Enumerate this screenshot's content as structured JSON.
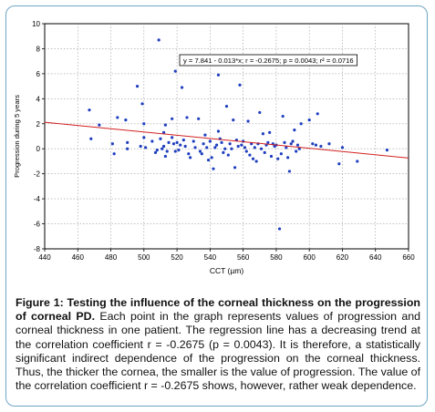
{
  "chart_data": {
    "type": "scatter",
    "title": "",
    "xlabel": "CCT (µm)",
    "ylabel": "Progression during 5 years",
    "xlim": [
      440,
      660
    ],
    "ylim": [
      -8,
      10
    ],
    "x_ticks": [
      440,
      460,
      480,
      500,
      520,
      540,
      560,
      580,
      600,
      620,
      640,
      660
    ],
    "y_ticks": [
      -8,
      -6,
      -4,
      -2,
      0,
      2,
      4,
      6,
      8,
      10
    ],
    "grid": true,
    "annotation": "y = 7.841 - 0.013*x;  r = -0.2675; p = 0.0043; r² = 0.0716",
    "regression": {
      "intercept": 7.841,
      "slope": -0.013,
      "color": "#d42020"
    },
    "point_color": "#1f3fbf",
    "points": [
      [
        467,
        3.1
      ],
      [
        468,
        0.8
      ],
      [
        473,
        1.9
      ],
      [
        481,
        0.4
      ],
      [
        482,
        -0.4
      ],
      [
        484,
        2.5
      ],
      [
        489,
        2.3
      ],
      [
        490,
        0.5
      ],
      [
        490,
        0.0
      ],
      [
        496,
        5.0
      ],
      [
        498,
        0.2
      ],
      [
        499,
        3.6
      ],
      [
        500,
        2.0
      ],
      [
        500,
        0.9
      ],
      [
        501,
        0.1
      ],
      [
        505,
        0.6
      ],
      [
        507,
        -0.3
      ],
      [
        508,
        -0.1
      ],
      [
        509,
        8.7
      ],
      [
        510,
        0.8
      ],
      [
        511,
        0.0
      ],
      [
        512,
        1.3
      ],
      [
        512,
        0.2
      ],
      [
        513,
        -0.6
      ],
      [
        513,
        1.9
      ],
      [
        514,
        -0.2
      ],
      [
        515,
        0.5
      ],
      [
        517,
        2.4
      ],
      [
        517,
        0.9
      ],
      [
        518,
        0.4
      ],
      [
        519,
        6.2
      ],
      [
        519,
        -0.2
      ],
      [
        520,
        0.5
      ],
      [
        521,
        -0.1
      ],
      [
        522,
        0.3
      ],
      [
        523,
        4.9
      ],
      [
        524,
        0.7
      ],
      [
        525,
        0.2
      ],
      [
        526,
        2.5
      ],
      [
        527,
        -0.4
      ],
      [
        528,
        -0.7
      ],
      [
        530,
        0.6
      ],
      [
        531,
        0.1
      ],
      [
        533,
        2.4
      ],
      [
        534,
        -0.2
      ],
      [
        535,
        -0.4
      ],
      [
        536,
        0.4
      ],
      [
        537,
        1.1
      ],
      [
        538,
        0.1
      ],
      [
        539,
        -0.9
      ],
      [
        540,
        0.6
      ],
      [
        541,
        -0.7
      ],
      [
        542,
        -1.6
      ],
      [
        543,
        0.1
      ],
      [
        544,
        0.3
      ],
      [
        545,
        5.9
      ],
      [
        545,
        1.4
      ],
      [
        546,
        0.8
      ],
      [
        547,
        0.5
      ],
      [
        548,
        -0.3
      ],
      [
        549,
        0.0
      ],
      [
        550,
        3.4
      ],
      [
        551,
        -0.5
      ],
      [
        552,
        0.4
      ],
      [
        553,
        0.0
      ],
      [
        554,
        2.3
      ],
      [
        555,
        -1.5
      ],
      [
        556,
        0.7
      ],
      [
        557,
        0.2
      ],
      [
        558,
        5.1
      ],
      [
        559,
        0.3
      ],
      [
        560,
        0.6
      ],
      [
        561,
        0.1
      ],
      [
        562,
        -0.2
      ],
      [
        563,
        2.2
      ],
      [
        564,
        -0.5
      ],
      [
        565,
        0.4
      ],
      [
        566,
        -0.8
      ],
      [
        567,
        0.1
      ],
      [
        568,
        -1.0
      ],
      [
        569,
        0.4
      ],
      [
        570,
        2.9
      ],
      [
        571,
        0.0
      ],
      [
        572,
        1.2
      ],
      [
        573,
        -0.3
      ],
      [
        574,
        0.3
      ],
      [
        575,
        0.5
      ],
      [
        576,
        1.3
      ],
      [
        577,
        -0.6
      ],
      [
        578,
        0.4
      ],
      [
        579,
        0.2
      ],
      [
        580,
        0.3
      ],
      [
        581,
        -0.8
      ],
      [
        582,
        -6.4
      ],
      [
        583,
        -0.4
      ],
      [
        584,
        2.6
      ],
      [
        585,
        0.5
      ],
      [
        586,
        0.1
      ],
      [
        587,
        -0.7
      ],
      [
        588,
        -1.8
      ],
      [
        589,
        0.4
      ],
      [
        590,
        0.6
      ],
      [
        591,
        1.5
      ],
      [
        592,
        -0.2
      ],
      [
        593,
        0.3
      ],
      [
        594,
        0.0
      ],
      [
        595,
        2.0
      ],
      [
        600,
        2.3
      ],
      [
        602,
        0.4
      ],
      [
        604,
        0.3
      ],
      [
        605,
        2.8
      ],
      [
        607,
        0.2
      ],
      [
        612,
        0.4
      ],
      [
        618,
        -1.2
      ],
      [
        620,
        0.1
      ],
      [
        629,
        -1.0
      ],
      [
        647,
        -0.1
      ]
    ]
  },
  "caption": {
    "label": "Figure 1: Testing the influence of the corneal thickness on the progression of corneal PD.",
    "text": "Each point in the graph represents values of progression and corneal thickness in one patient. The regression line has a decreasing trend at the correlation coefficient r = -0.2675 (p = 0.0043). It is therefore, a statistically significant indirect dependence of the progression on the corneal thickness. Thus, the thicker the cornea, the smaller is the value of progression. The value of the correlation coefficient r = -0.2675 shows, however, rather weak dependence."
  }
}
